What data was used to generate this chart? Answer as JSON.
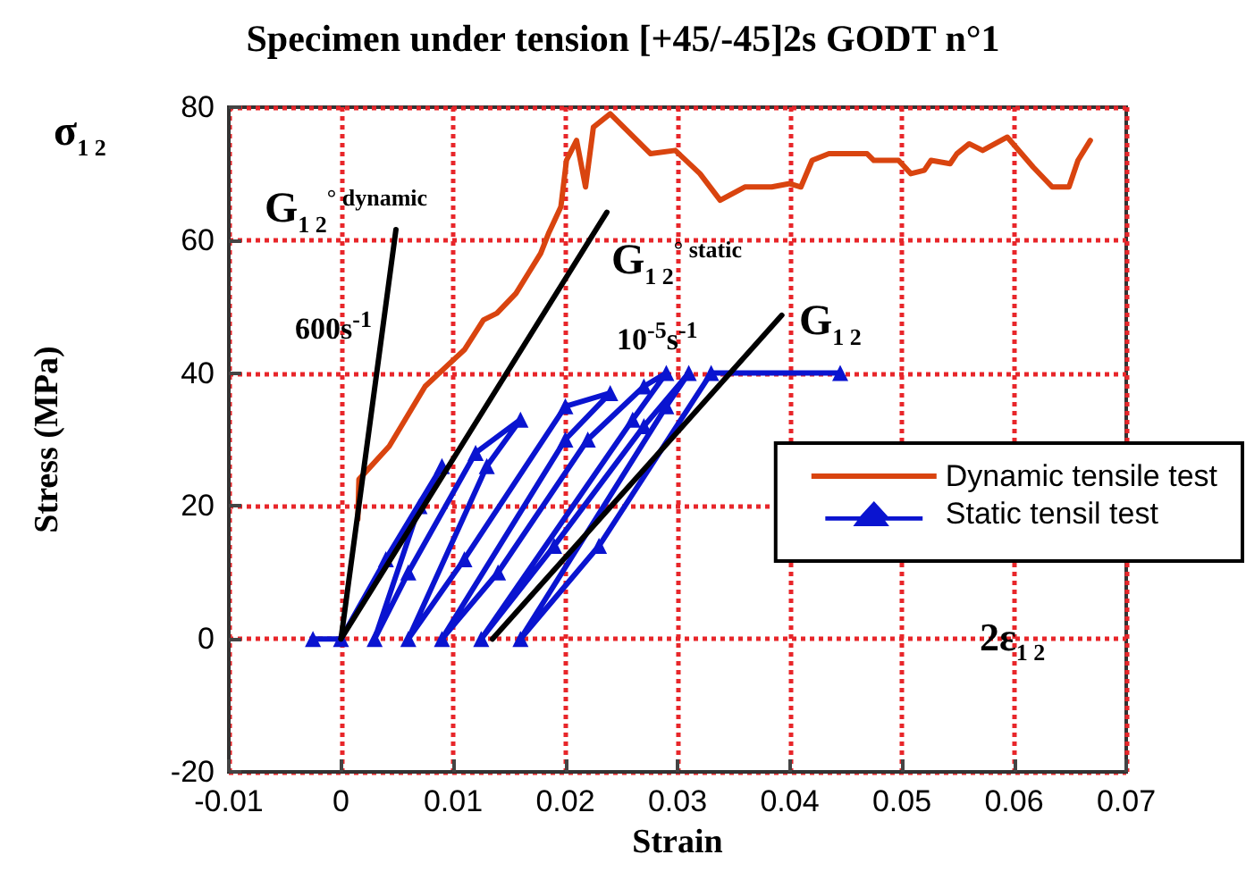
{
  "chart_data": {
    "type": "line",
    "title": "Specimen under tension [+45/-45]2s GODT n°1",
    "xlabel": "Strain",
    "ylabel": "Stress (MPa)",
    "xlim": [
      -0.01,
      0.07
    ],
    "xticks": [
      -0.01,
      0,
      0.01,
      0.02,
      0.03,
      0.04,
      0.05,
      0.06,
      0.07
    ],
    "ylim": [
      -20,
      80
    ],
    "yticks": [
      -20,
      0,
      20,
      40,
      60,
      80
    ],
    "grid": true,
    "legend": "right",
    "marker": "none",
    "line_style": "solid",
    "series": [
      {
        "name": "Dynamic tensile test",
        "color": "#d9440f",
        "x": [
          0.0015,
          0.0016,
          0.0043,
          0.0075,
          0.0094,
          0.011,
          0.0127,
          0.0139,
          0.0156,
          0.0167,
          0.0178,
          0.0185,
          0.0196,
          0.0201,
          0.021,
          0.0218,
          0.0225,
          0.024,
          0.0276,
          0.0298,
          0.032,
          0.0338,
          0.036,
          0.0384,
          0.04,
          0.041,
          0.042,
          0.0435,
          0.0452,
          0.0469,
          0.0475,
          0.0497,
          0.0508,
          0.052,
          0.0526,
          0.0543,
          0.0549,
          0.056,
          0.0572,
          0.0594,
          0.0617,
          0.0634,
          0.0649,
          0.0657,
          0.0668
        ],
        "values": [
          18,
          24,
          29,
          38,
          41,
          43.5,
          48,
          49,
          52,
          55,
          58,
          61,
          65,
          72,
          75,
          68,
          77,
          79,
          73,
          73.5,
          70,
          66,
          68,
          68,
          68.5,
          68,
          72,
          73,
          73,
          73,
          72,
          72,
          70,
          70.5,
          72,
          71.5,
          73,
          74.5,
          73.5,
          75.5,
          71,
          68,
          68,
          72,
          75
        ]
      },
      {
        "name": "Static tensil test",
        "color": "#0a14d0",
        "marker": "triangle",
        "x": [
          -0.0025,
          0,
          0.004,
          0.009,
          0.007,
          0.003,
          0.006,
          0.012,
          0.016,
          0.013,
          0.006,
          0.011,
          0.02,
          0.024,
          0.02,
          0.009,
          0.014,
          0.022,
          0.027,
          0.029,
          0.026,
          0.0125,
          0.019,
          0.027,
          0.031,
          0.029,
          0.016,
          0.023,
          0.033,
          0.0445
        ],
        "values": [
          0,
          0,
          12,
          26,
          20,
          0,
          10,
          28,
          33,
          26,
          0,
          12,
          35,
          37,
          30,
          0,
          10,
          30,
          38,
          40,
          33,
          0,
          14,
          32,
          40,
          35,
          0,
          14,
          40,
          40
        ]
      },
      {
        "color": "#000000",
        "x": [
          0,
          0.0049
        ],
        "values": [
          0,
          61.6
        ]
      },
      {
        "color": "#000000",
        "x": [
          0,
          0.0237
        ],
        "values": [
          0,
          64.2
        ]
      },
      {
        "color": "#000000",
        "x": [
          0.0135,
          0.0393
        ],
        "values": [
          0,
          48.7
        ]
      }
    ],
    "annotations": [
      "σ$_{1 2}$",
      "2ε$_{1 2}$",
      "G$_{1 2}$$^{° dynamic}$",
      "600s$^{-1}$",
      "G$_{1 2}$$^{° static}$",
      "10$^{-5}$s$^{-1}$",
      "G$_{1 2}$"
    ]
  }
}
